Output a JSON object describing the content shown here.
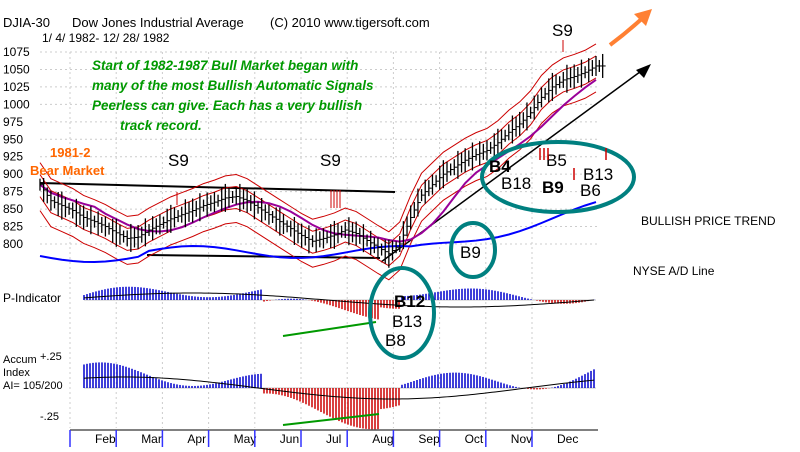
{
  "header": {
    "symbol": "DJIA-30",
    "name": "Dow Jones Industrial Average",
    "copyright": "(C) 2010 www.tigersoft.com",
    "dates": "1/ 4/ 1982-  12/ 28/ 1982"
  },
  "annotations": {
    "bull_note": [
      "Start of 1982-1987 Bull Market began with",
      "many of the most Bullish Automatic Signals",
      "Peerless can give.  Each has a very bullish",
      "track record."
    ],
    "bear_title": "1981-2",
    "bear_subtitle": "Bear Market",
    "bullish_trend": "BULLISH PRICE TREND",
    "ad_line_label": "NYSE A/D Line",
    "p_indicator_label": "P-Indicator",
    "accum_label": [
      "Accum",
      "Index",
      "AI= 105/200"
    ],
    "accum_tick_top": "+.25",
    "accum_tick_bottom": "-.25"
  },
  "signals": {
    "s9_a": "S9",
    "s9_b": "S9",
    "s9_c": "S9",
    "b4": "B4",
    "b18": "B18",
    "b5": "B5",
    "b9a": "B9",
    "b13a": "B13",
    "b6": "B6",
    "b9b": "B9",
    "b12": "B12",
    "b13b": "B13",
    "b8": "B8"
  },
  "colors": {
    "price_bar": "#000000",
    "band": "#cc0000",
    "ma": "#990099",
    "ad_line": "#0000ff",
    "note_green": "#009900",
    "bear_orange": "#ff6600",
    "circle": "#008080",
    "arrow_orange": "#ff8033",
    "osc_up": "#0000cc",
    "osc_down": "#cc0000",
    "divergence": "#009900"
  },
  "chart_data": {
    "type": "bar",
    "title": "DJIA-30  Dow Jones Industrial Average",
    "x_months": [
      "Feb",
      "Mar",
      "Apr",
      "May",
      "Jun",
      "Jul",
      "Aug",
      "Sep",
      "Oct",
      "Nov",
      "Dec"
    ],
    "y_ticks": [
      1075,
      1050,
      1025,
      1000,
      975,
      950,
      925,
      900,
      875,
      850,
      825,
      800
    ],
    "ylim": [
      776,
      1090
    ],
    "grid": true,
    "series": [
      {
        "x": [
          0,
          1,
          2,
          3,
          4,
          5,
          6,
          7,
          8,
          9,
          10,
          11,
          12,
          13,
          14,
          15,
          16,
          17,
          18,
          19,
          20,
          21,
          22,
          23,
          24,
          25,
          26,
          27,
          28,
          29,
          30,
          31,
          32,
          33,
          34,
          35,
          36,
          37,
          38,
          39,
          40,
          41,
          42,
          43,
          44,
          45,
          46,
          47,
          48,
          49,
          50,
          51
        ],
        "y": [
          885,
          862,
          855,
          848,
          838,
          832,
          825,
          816,
          808,
          810,
          820,
          828,
          836,
          842,
          848,
          855,
          860,
          866,
          868,
          862,
          852,
          842,
          832,
          822,
          812,
          804,
          808,
          813,
          820,
          815,
          805,
          795,
          786,
          800,
          838,
          870,
          885,
          900,
          910,
          920,
          928,
          934,
          945,
          960,
          972,
          988,
          1010,
          1025,
          1035,
          1040,
          1046,
          1055
        ]
      }
    ]
  }
}
